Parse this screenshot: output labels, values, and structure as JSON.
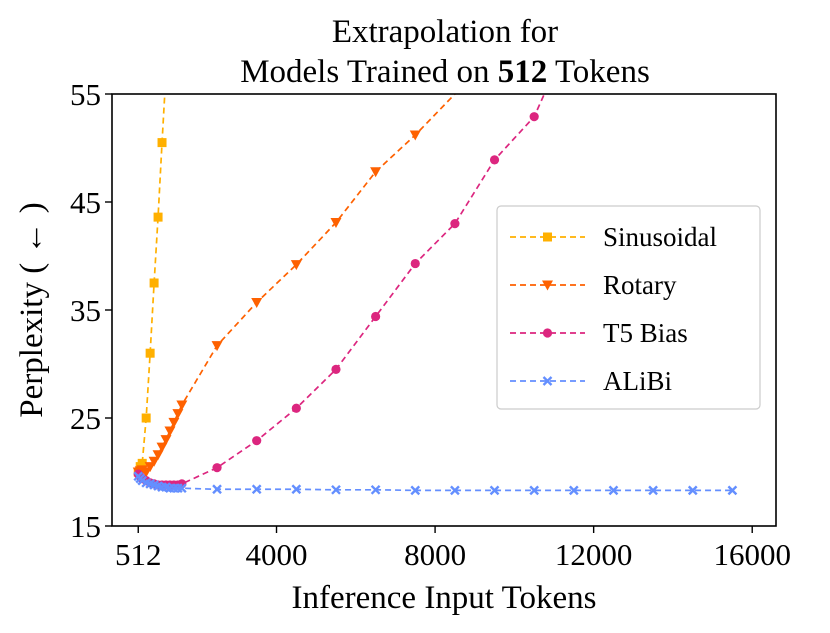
{
  "chart_data": {
    "type": "line",
    "title_line1": "Extrapolation for",
    "title_line2_prefix": "Models Trained on ",
    "title_line2_bold": "512",
    "title_line2_suffix": " Tokens",
    "xlabel": "Inference Input Tokens",
    "ylabel": "Perplexity ( ← )",
    "xlim": [
      -150,
      16600
    ],
    "ylim": [
      15,
      55
    ],
    "xticks": [
      512,
      4000,
      8000,
      12000,
      16000
    ],
    "xtick_labels": [
      "512",
      "4000",
      "8000",
      "12000",
      "16000"
    ],
    "yticks": [
      15,
      25,
      35,
      45,
      55
    ],
    "ytick_labels": [
      "15",
      "25",
      "35",
      "45",
      "55"
    ],
    "legend_position": "center-right",
    "series": [
      {
        "name": "Sinusoidal",
        "color": "#ffb000",
        "marker": "square",
        "x": [
          512,
          562,
          612,
          712,
          812,
          912,
          1012,
          1112,
          1212
        ],
        "y": [
          20.0,
          20.5,
          20.8,
          25.0,
          31.0,
          37.5,
          43.6,
          50.5,
          57.0
        ]
      },
      {
        "name": "Rotary",
        "color": "#fe6100",
        "marker": "triangle-down",
        "x": [
          512,
          562,
          612,
          712,
          812,
          912,
          1012,
          1112,
          1212,
          1312,
          1412,
          1512,
          1612,
          2500,
          3500,
          4500,
          5500,
          6500,
          7500,
          8500,
          8700
        ],
        "y": [
          20.0,
          20.1,
          20.2,
          20.0,
          20.5,
          21.0,
          21.6,
          22.3,
          23.0,
          23.8,
          24.6,
          25.4,
          26.2,
          31.7,
          35.7,
          39.2,
          43.1,
          47.8,
          51.2,
          55.0,
          55.6
        ],
        "markers_count": 19
      },
      {
        "name": "T5 Bias",
        "color": "#dc267f",
        "marker": "circle",
        "x": [
          512,
          562,
          612,
          712,
          812,
          912,
          1012,
          1112,
          1212,
          1312,
          1412,
          1512,
          1612,
          2500,
          3500,
          4500,
          5500,
          6500,
          7500,
          8500,
          9500,
          10500,
          11000
        ],
        "y": [
          19.8,
          19.6,
          19.4,
          19.2,
          19.0,
          18.9,
          18.8,
          18.8,
          18.8,
          18.8,
          18.8,
          18.8,
          18.9,
          20.4,
          22.9,
          25.9,
          29.5,
          34.4,
          39.3,
          43.0,
          48.9,
          52.9,
          57.0
        ],
        "markers_count": 22
      },
      {
        "name": "ALiBi",
        "color": "#648fff",
        "marker": "x",
        "x": [
          512,
          562,
          612,
          712,
          812,
          912,
          1012,
          1112,
          1212,
          1312,
          1412,
          1512,
          1612,
          2500,
          3500,
          4500,
          5500,
          6500,
          7500,
          8500,
          9500,
          10500,
          11500,
          12500,
          13500,
          14500,
          15500
        ],
        "y": [
          19.6,
          19.4,
          19.2,
          19.0,
          18.9,
          18.8,
          18.7,
          18.6,
          18.6,
          18.5,
          18.5,
          18.5,
          18.5,
          18.4,
          18.4,
          18.4,
          18.35,
          18.35,
          18.3,
          18.3,
          18.3,
          18.3,
          18.3,
          18.3,
          18.3,
          18.3,
          18.3
        ]
      }
    ]
  }
}
